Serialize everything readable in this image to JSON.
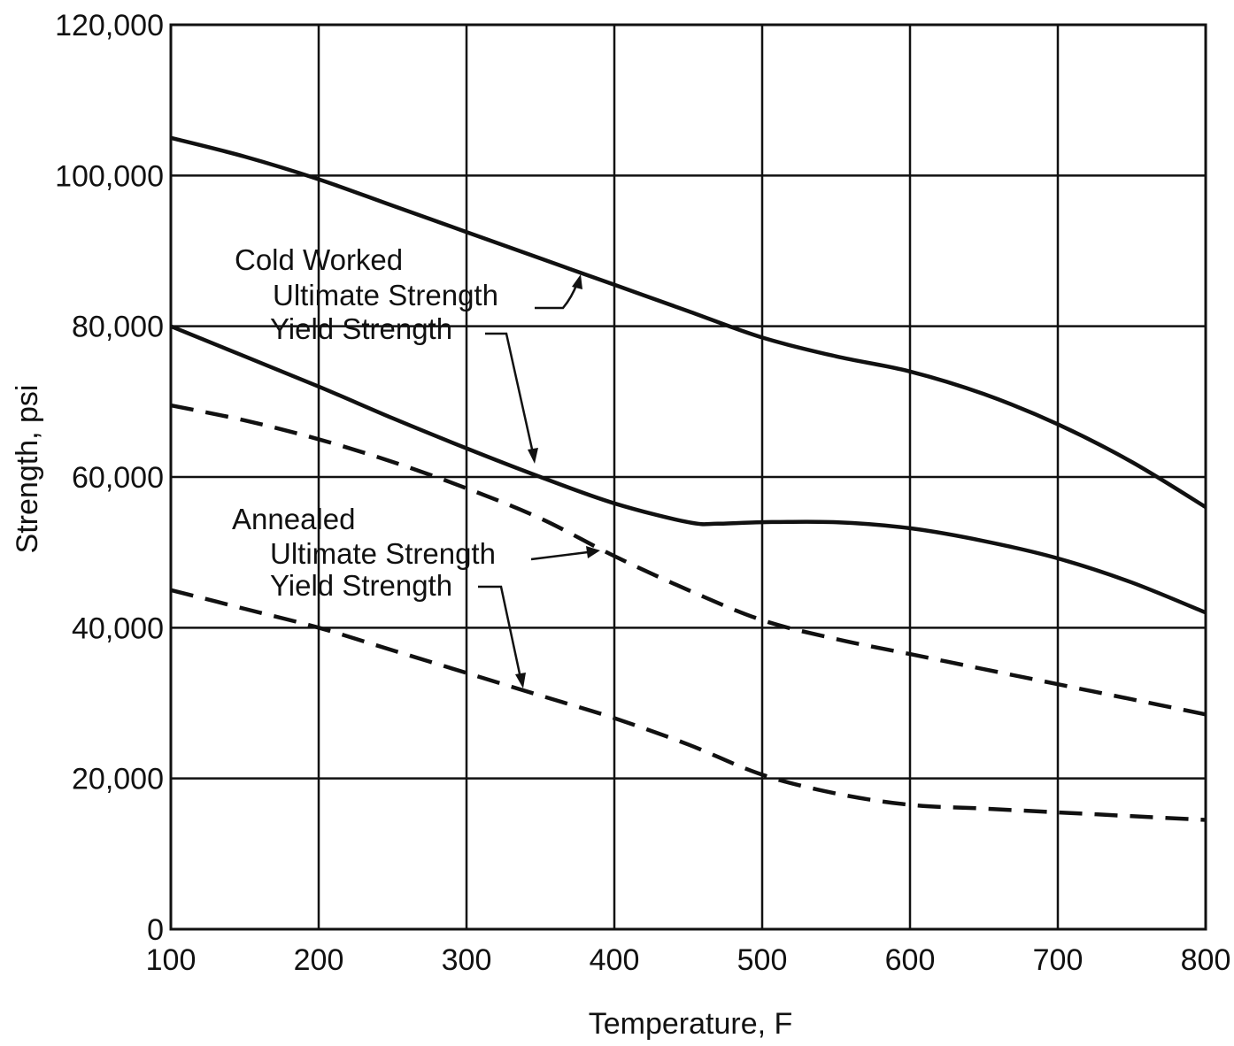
{
  "chart_data": {
    "type": "line",
    "xlabel": "Temperature, F",
    "ylabel": "Strength, psi",
    "xlim": [
      100,
      800
    ],
    "ylim": [
      0,
      120000
    ],
    "grid": true,
    "x_ticks": [
      100,
      200,
      300,
      400,
      500,
      600,
      700,
      800
    ],
    "x_tick_labels": [
      "100",
      "200",
      "300",
      "400",
      "500",
      "600",
      "700",
      "800"
    ],
    "y_ticks": [
      0,
      20000,
      40000,
      60000,
      80000,
      100000,
      120000
    ],
    "y_tick_labels": [
      "0",
      "20,000",
      "40,000",
      "60,000",
      "80,000",
      "100,000",
      "120,000"
    ],
    "annotations": {
      "cold_worked": "Cold Worked",
      "annealed": "Annealed",
      "ultimate_strength": "Ultimate Strength",
      "yield_strength": "Yield Strength"
    },
    "series": [
      {
        "group": "Cold Worked",
        "property": "Ultimate Strength",
        "style": "solid",
        "x": [
          100,
          150,
          200,
          250,
          300,
          350,
          400,
          450,
          500,
          550,
          600,
          650,
          700,
          750,
          800
        ],
        "y": [
          105000,
          102500,
          99500,
          96000,
          92500,
          89000,
          85500,
          82000,
          78500,
          76000,
          74000,
          71000,
          67000,
          62000,
          56000
        ]
      },
      {
        "group": "Cold Worked",
        "property": "Yield Strength",
        "style": "solid",
        "x": [
          100,
          150,
          200,
          250,
          300,
          350,
          400,
          450,
          470,
          500,
          550,
          600,
          650,
          700,
          750,
          800
        ],
        "y": [
          80000,
          76000,
          72000,
          67800,
          63800,
          60000,
          56500,
          54000,
          53800,
          54000,
          54000,
          53200,
          51500,
          49200,
          46000,
          42000
        ]
      },
      {
        "group": "Annealed",
        "property": "Ultimate Strength",
        "style": "dashed",
        "x": [
          100,
          150,
          200,
          250,
          300,
          350,
          400,
          450,
          500,
          550,
          600,
          650,
          700,
          750,
          800
        ],
        "y": [
          69500,
          67500,
          65000,
          62000,
          58500,
          54500,
          49500,
          45000,
          41000,
          38500,
          36500,
          34500,
          32500,
          30500,
          28500
        ]
      },
      {
        "group": "Annealed",
        "property": "Yield Strength",
        "style": "dashed",
        "x": [
          100,
          150,
          200,
          250,
          300,
          350,
          400,
          450,
          500,
          550,
          600,
          650,
          700,
          750,
          800
        ],
        "y": [
          45000,
          42500,
          40000,
          37000,
          34000,
          31000,
          28000,
          24500,
          20500,
          18000,
          16500,
          16000,
          15500,
          15000,
          14500
        ]
      }
    ]
  }
}
